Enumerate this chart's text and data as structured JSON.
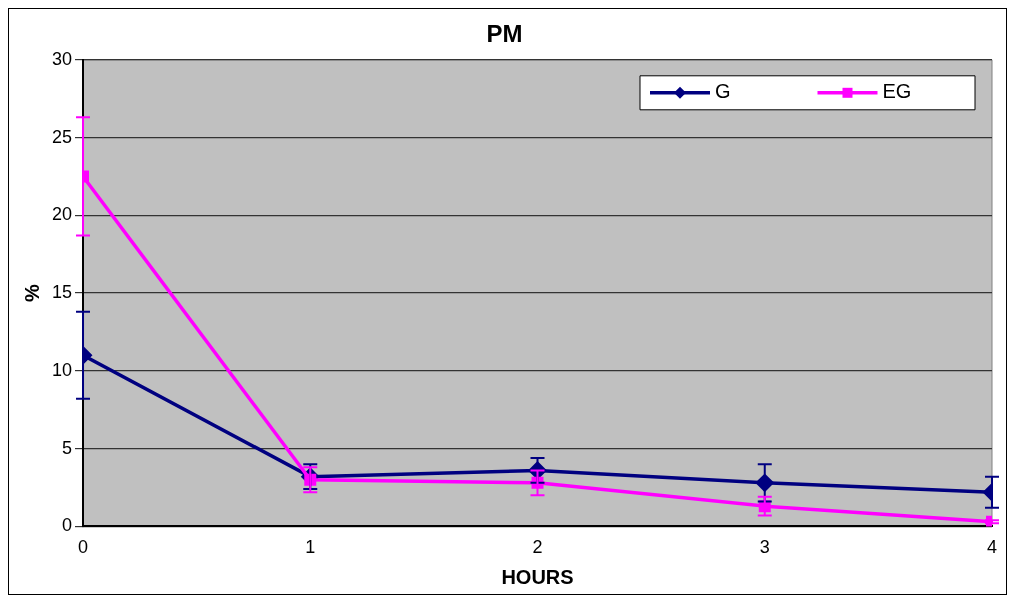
{
  "chart_data": {
    "type": "line",
    "title": "PM",
    "xlabel": "HOURS",
    "ylabel": "%",
    "x": [
      0,
      1,
      2,
      3,
      4
    ],
    "xlim": [
      0,
      4
    ],
    "xticks": [
      0,
      1,
      2,
      3,
      4
    ],
    "ylim": [
      0,
      30
    ],
    "yticks": [
      0,
      5,
      10,
      15,
      20,
      25,
      30
    ],
    "grid": "y",
    "legend": "top right",
    "series": [
      {
        "name": "G",
        "color": "#000080",
        "marker": "diamond",
        "values": [
          11,
          3.2,
          3.6,
          2.8,
          2.2
        ],
        "errors": [
          2.8,
          0.8,
          0.8,
          1.2,
          1.0
        ]
      },
      {
        "name": "EG",
        "color": "#ff00ff",
        "marker": "square",
        "values": [
          22.5,
          3.0,
          2.8,
          1.3,
          0.3
        ],
        "errors": [
          3.8,
          0.8,
          0.8,
          0.6,
          0.1
        ]
      }
    ]
  }
}
